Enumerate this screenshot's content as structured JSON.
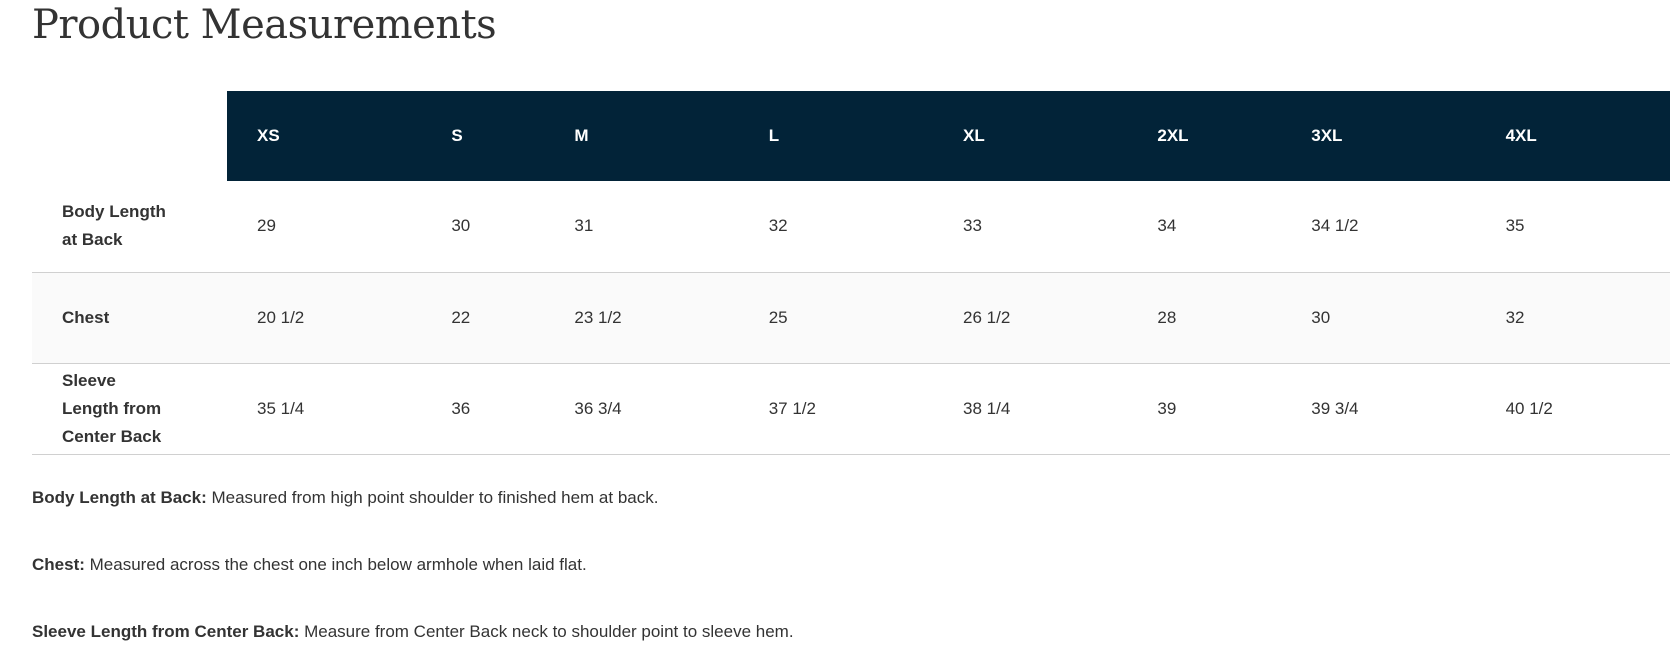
{
  "title": "Product Measurements",
  "table": {
    "sizes": [
      "XS",
      "S",
      "M",
      "L",
      "XL",
      "2XL",
      "3XL",
      "4XL"
    ],
    "rows": [
      {
        "label_lines": [
          "Body Length",
          "at Back"
        ],
        "values": [
          "29",
          "30",
          "31",
          "32",
          "33",
          "34",
          "34 1/2",
          "35"
        ]
      },
      {
        "label_lines": [
          "Chest"
        ],
        "values": [
          "20 1/2",
          "22",
          "23 1/2",
          "25",
          "26 1/2",
          "28",
          "30",
          "32"
        ]
      },
      {
        "label_lines": [
          "Sleeve",
          "Length from",
          "Center Back"
        ],
        "values": [
          "35 1/4",
          "36",
          "36 3/4",
          "37 1/2",
          "38 1/4",
          "39",
          "39 3/4",
          "40 1/2"
        ]
      }
    ]
  },
  "notes": [
    {
      "term": "Body Length at Back:",
      "text": " Measured from high point shoulder to finished hem at back."
    },
    {
      "term": "Chest:",
      "text": " Measured across the chest one inch below armhole when laid flat."
    },
    {
      "term": "Sleeve Length from Center Back:",
      "text": " Measure from Center Back neck to shoulder point to sleeve hem."
    }
  ],
  "colors": {
    "header_bg": "#022338",
    "header_text": "#ffffff",
    "alt_row_bg": "#fafafa"
  }
}
